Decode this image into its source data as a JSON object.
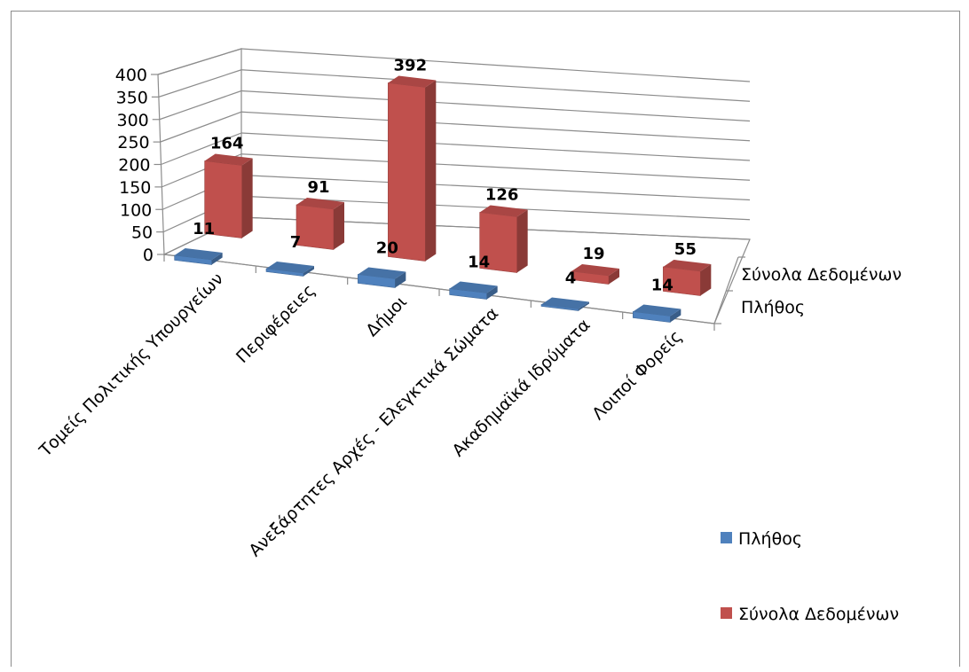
{
  "chart_data": {
    "type": "bar",
    "categories": [
      "Τομείς Πολιτικής Υπουργείων",
      "Περιφέρειες",
      "Δήμοι",
      "Ανεξάρτητες Αρχές - Ελεγκτικά Σώματα",
      "Ακαδημαϊκά Ιδρύματα",
      "Λοιποί Φορείς"
    ],
    "series": [
      {
        "name": "Πλήθος",
        "values": [
          11,
          7,
          20,
          14,
          4,
          14
        ],
        "color": "#4f81bd"
      },
      {
        "name": "Σύνολα Δεδομένων",
        "values": [
          164,
          91,
          392,
          126,
          19,
          55
        ],
        "color": "#c0504d"
      }
    ],
    "ylim": [
      0,
      400
    ],
    "yticks": [
      "0",
      "50",
      "100",
      "150",
      "200",
      "250",
      "300",
      "350",
      "400"
    ],
    "grid": true,
    "legend": "right"
  }
}
